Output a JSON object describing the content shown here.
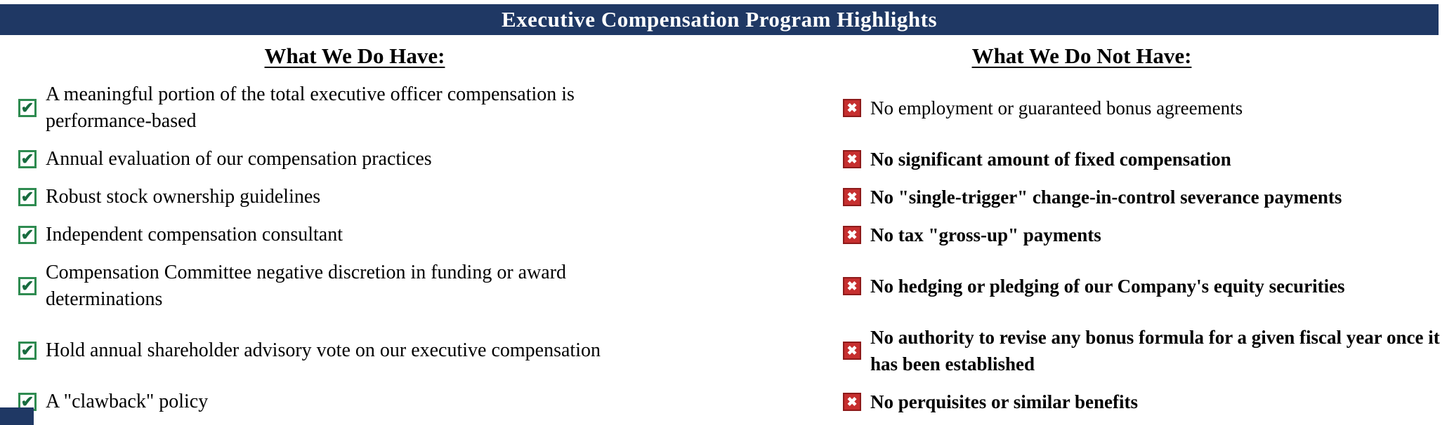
{
  "header": {
    "title": "Executive Compensation Program Highlights"
  },
  "columns": {
    "left": {
      "heading": "What We Do Have:",
      "icon": "green-checkbox-icon",
      "items": [
        {
          "text": "A meaningful portion of the total executive officer compensation is performance-based",
          "bold": false
        },
        {
          "text": "Annual evaluation of our compensation practices",
          "bold": false
        },
        {
          "text": "Robust stock ownership guidelines",
          "bold": false
        },
        {
          "text": "Independent compensation consultant",
          "bold": false
        },
        {
          "text": "Compensation Committee negative discretion in funding or award determinations",
          "bold": false
        },
        {
          "text": "Hold annual shareholder advisory vote on our executive compensation",
          "bold": false
        },
        {
          "text": "A \"clawback\" policy",
          "bold": false
        }
      ]
    },
    "right": {
      "heading": "What We Do Not Have:",
      "icon": "red-x-checkbox-icon",
      "items": [
        {
          "text": "No employment or guaranteed bonus agreements",
          "bold": false
        },
        {
          "text": "No significant amount of fixed compensation",
          "bold": true
        },
        {
          "text": "No \"single-trigger\" change-in-control severance payments",
          "bold": true
        },
        {
          "text": "No tax \"gross-up\" payments",
          "bold": true
        },
        {
          "text": "No hedging or pledging of our Company's equity securities",
          "bold": true
        },
        {
          "text": "No authority to revise any bonus formula for a given fiscal year once it has been established",
          "bold": true
        },
        {
          "text": "No perquisites or similar benefits",
          "bold": true
        }
      ]
    }
  },
  "icons": {
    "check_glyph": "✔",
    "x_glyph": "✖"
  },
  "colors": {
    "header_bg": "#1F3864",
    "header_text": "#FFFFFF",
    "check_green": "#2E8B50",
    "x_red": "#C62F2F",
    "text": "#000000"
  }
}
